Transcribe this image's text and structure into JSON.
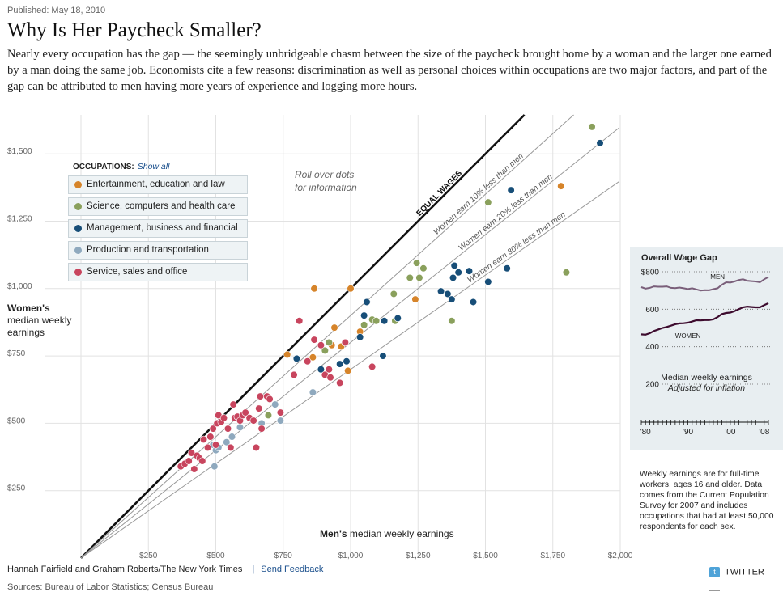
{
  "published": "Published: May 18, 2010",
  "title": "Why Is Her Paycheck Smaller?",
  "intro": "Nearly every occupation has the gap — the seemingly unbridgeable chasm between the size of the paycheck brought home by a woman and the larger one earned by a man doing the same job. Economists cite a few reasons: discrimination as well as personal choices within occupations are two major factors, and part of the gap can be attributed to men having more years of experience and logging more hours.",
  "legend": {
    "heading": "OCCUPATIONS:",
    "show_all": "Show all",
    "items": [
      {
        "label": "Entertainment, education and law",
        "color": "#d6842a"
      },
      {
        "label": "Science, computers and health care",
        "color": "#8aa05c"
      },
      {
        "label": "Management, business and financial",
        "color": "#174e78"
      },
      {
        "label": "Production and transportation",
        "color": "#8fa9be"
      },
      {
        "label": "Service, sales and office",
        "color": "#c8455e"
      }
    ]
  },
  "rollover_note": "Roll over dots for information",
  "y_label_bold": "Women's",
  "y_label_rest": "median weekly earnings",
  "x_label_bold": "Men's",
  "x_label_rest": " median weekly earnings",
  "chart_data": {
    "type": "scatter",
    "xlabel": "Men's median weekly earnings",
    "ylabel": "Women's median weekly earnings",
    "xlim": [
      0,
      2000
    ],
    "ylim": [
      0,
      1500
    ],
    "x_ticks": [
      250,
      500,
      750,
      1000,
      1250,
      1500,
      1750,
      2000
    ],
    "x_tick_labels": [
      "$250",
      "$500",
      "$750",
      "$1,000",
      "$1,250",
      "$1,500",
      "$1,750",
      "$2,000"
    ],
    "y_ticks": [
      250,
      500,
      750,
      1000,
      1250,
      1500
    ],
    "y_tick_labels": [
      "$250",
      "$500",
      "$750",
      "$1,000",
      "$1,250",
      "$1,500"
    ],
    "reference_lines": [
      {
        "label": "EQUAL WAGES",
        "ratio": 1.0
      },
      {
        "label": "Women earn 10% less than men",
        "ratio": 0.9
      },
      {
        "label": "Women earn 20% less than men",
        "ratio": 0.8
      },
      {
        "label": "Women earn 30% less than men",
        "ratio": 0.7
      }
    ],
    "series": [
      {
        "name": "Entertainment, education and law",
        "color": "#d6842a",
        "points": [
          [
            765,
            755
          ],
          [
            860,
            745
          ],
          [
            865,
            1000
          ],
          [
            940,
            855
          ],
          [
            930,
            790
          ],
          [
            965,
            785
          ],
          [
            980,
            800
          ],
          [
            990,
            695
          ],
          [
            1000,
            1000
          ],
          [
            1035,
            840
          ],
          [
            1240,
            960
          ],
          [
            1780,
            1380
          ]
        ]
      },
      {
        "name": "Science, computers and health care",
        "color": "#8aa05c",
        "points": [
          [
            695,
            530
          ],
          [
            905,
            770
          ],
          [
            920,
            800
          ],
          [
            1050,
            865
          ],
          [
            1080,
            885
          ],
          [
            1095,
            880
          ],
          [
            1160,
            980
          ],
          [
            1165,
            880
          ],
          [
            1220,
            1040
          ],
          [
            1245,
            1095
          ],
          [
            1255,
            1040
          ],
          [
            1270,
            1075
          ],
          [
            1375,
            880
          ],
          [
            1510,
            1320
          ],
          [
            1800,
            1060
          ],
          [
            1895,
            1600
          ]
        ]
      },
      {
        "name": "Management, business and financial",
        "color": "#174e78",
        "points": [
          [
            800,
            740
          ],
          [
            890,
            700
          ],
          [
            960,
            720
          ],
          [
            985,
            730
          ],
          [
            1035,
            820
          ],
          [
            1050,
            900
          ],
          [
            1060,
            950
          ],
          [
            1120,
            750
          ],
          [
            1125,
            880
          ],
          [
            1175,
            890
          ],
          [
            1335,
            990
          ],
          [
            1360,
            980
          ],
          [
            1375,
            960
          ],
          [
            1380,
            1040
          ],
          [
            1385,
            1085
          ],
          [
            1400,
            1060
          ],
          [
            1440,
            1065
          ],
          [
            1455,
            950
          ],
          [
            1510,
            1025
          ],
          [
            1580,
            1075
          ],
          [
            1595,
            1365
          ],
          [
            1925,
            1540
          ]
        ]
      },
      {
        "name": "Production and transportation",
        "color": "#8fa9be",
        "points": [
          [
            490,
            420
          ],
          [
            495,
            340
          ],
          [
            500,
            400
          ],
          [
            510,
            410
          ],
          [
            540,
            430
          ],
          [
            560,
            450
          ],
          [
            580,
            520
          ],
          [
            590,
            485
          ],
          [
            670,
            500
          ],
          [
            720,
            570
          ],
          [
            740,
            510
          ],
          [
            860,
            615
          ]
        ]
      },
      {
        "name": "Service, sales and office",
        "color": "#c8455e",
        "points": [
          [
            370,
            340
          ],
          [
            385,
            350
          ],
          [
            400,
            360
          ],
          [
            410,
            390
          ],
          [
            420,
            330
          ],
          [
            430,
            380
          ],
          [
            440,
            370
          ],
          [
            450,
            360
          ],
          [
            455,
            440
          ],
          [
            470,
            410
          ],
          [
            480,
            450
          ],
          [
            490,
            480
          ],
          [
            500,
            420
          ],
          [
            505,
            500
          ],
          [
            510,
            530
          ],
          [
            520,
            505
          ],
          [
            530,
            520
          ],
          [
            545,
            480
          ],
          [
            555,
            410
          ],
          [
            565,
            570
          ],
          [
            570,
            520
          ],
          [
            580,
            525
          ],
          [
            590,
            510
          ],
          [
            600,
            530
          ],
          [
            610,
            540
          ],
          [
            625,
            520
          ],
          [
            640,
            510
          ],
          [
            650,
            410
          ],
          [
            660,
            555
          ],
          [
            665,
            600
          ],
          [
            670,
            480
          ],
          [
            690,
            600
          ],
          [
            700,
            590
          ],
          [
            740,
            540
          ],
          [
            790,
            680
          ],
          [
            810,
            880
          ],
          [
            840,
            730
          ],
          [
            865,
            810
          ],
          [
            890,
            790
          ],
          [
            905,
            680
          ],
          [
            920,
            700
          ],
          [
            925,
            670
          ],
          [
            960,
            650
          ],
          [
            980,
            800
          ],
          [
            1080,
            710
          ]
        ]
      }
    ]
  },
  "inset": {
    "title": "Overall Wage Gap",
    "men_label": "MEN",
    "women_label": "WOMEN",
    "caption_line1": "Median weekly earnings",
    "caption_line2": "Adjusted for inflation",
    "chart_data": {
      "type": "line",
      "ylim": [
        200,
        800
      ],
      "y_tick_labels": [
        "$800",
        "600",
        "400",
        "200"
      ],
      "y_ticks": [
        800,
        600,
        400,
        200
      ],
      "x_tick_labels": [
        "'80",
        "'90",
        "'00",
        "'08"
      ],
      "x_ticks": [
        1980,
        1990,
        2000,
        2008
      ],
      "series": [
        {
          "name": "MEN",
          "color": "#7a5f7a",
          "x": [
            1979,
            1980,
            1981,
            1982,
            1983,
            1984,
            1985,
            1986,
            1987,
            1988,
            1989,
            1990,
            1991,
            1992,
            1993,
            1994,
            1995,
            1996,
            1997,
            1998,
            1999,
            2000,
            2001,
            2002,
            2003,
            2004,
            2005,
            2006,
            2007,
            2008,
            2009
          ],
          "values": [
            718,
            710,
            714,
            722,
            720,
            720,
            722,
            714,
            713,
            716,
            712,
            708,
            712,
            706,
            700,
            702,
            701,
            707,
            712,
            730,
            744,
            742,
            748,
            756,
            760,
            752,
            750,
            748,
            744,
            760,
            772
          ]
        },
        {
          "name": "WOMEN",
          "color": "#3d0b2e",
          "x": [
            1979,
            1980,
            1981,
            1982,
            1983,
            1984,
            1985,
            1986,
            1987,
            1988,
            1989,
            1990,
            1991,
            1992,
            1993,
            1994,
            1995,
            1996,
            1997,
            1998,
            1999,
            2000,
            2001,
            2002,
            2003,
            2004,
            2005,
            2006,
            2007,
            2008,
            2009
          ],
          "values": [
            466,
            464,
            472,
            484,
            492,
            500,
            505,
            512,
            520,
            524,
            525,
            528,
            534,
            541,
            540,
            542,
            542,
            546,
            558,
            574,
            580,
            582,
            590,
            600,
            610,
            614,
            612,
            610,
            610,
            622,
            632
          ]
        }
      ]
    }
  },
  "footnote": "Weekly earnings are for full-time workers, ages 16 and older. Data comes from the Current Population Survey for 2007 and includes occupations that had at least 50,000 respondents for each sex.",
  "credit": "Hannah Fairfield and Graham Roberts/The New York Times",
  "credit_sep": "|",
  "send_feedback": "Send Feedback",
  "sources": "Sources: Bureau of Labor Statistics; Census Bureau",
  "share": {
    "twitter": "TWITTER"
  }
}
